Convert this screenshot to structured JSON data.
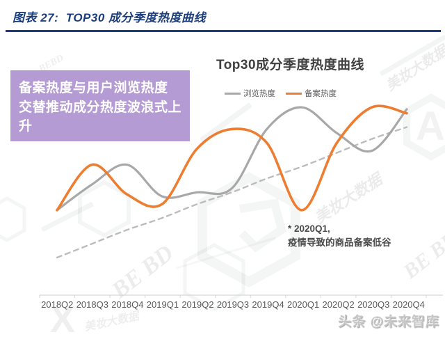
{
  "header": {
    "title": "图表 27:  TOP30 成分季度热度曲线"
  },
  "callout": {
    "line1": "备案热度与用户浏览热度",
    "line2": "交替推动成分热度波浪式上升"
  },
  "annotation": {
    "line1": "* 2020Q1,",
    "line2": "疫情导致的商品备案低谷"
  },
  "credit": "头条 @未来智库",
  "watermarks": {
    "brand": "BE BD",
    "brand_compact": "BEBD",
    "script": "美妆大数据",
    "letter_x": "X",
    "letter_a": "A"
  },
  "colors": {
    "header_blue": "#1c3e7c",
    "callout_bg": "#b49bd3",
    "callout_text": "#ffffff",
    "title_text": "#404040",
    "label_text": "#595959",
    "axis": "#d6d6d6",
    "view_gray": "#a8a8a8",
    "filing_orange": "#ed7d31",
    "trend_gray": "#bcbcbc"
  },
  "chart_data": {
    "type": "line",
    "title": "Top30成分季度热度曲线",
    "categories": [
      "2018Q2",
      "2018Q3",
      "2018Q4",
      "2019Q1",
      "2019Q2",
      "2019Q3",
      "2019Q4",
      "2020Q1",
      "2020Q2",
      "2020Q3",
      "2020Q4"
    ],
    "series": [
      {
        "name": "浏览热度",
        "color": "#a8a8a8",
        "style": "solid",
        "in_legend": true,
        "values": [
          43,
          56,
          66,
          50,
          52,
          54,
          84,
          95,
          82,
          73,
          94
        ]
      },
      {
        "name": "备案热度",
        "color": "#ed7d31",
        "style": "solid",
        "in_legend": true,
        "values": [
          43,
          66,
          51,
          46,
          74,
          84,
          77,
          43,
          77,
          95,
          92
        ]
      },
      {
        "name": "trend_dashed",
        "color": "#bcbcbc",
        "style": "dashed",
        "in_legend": false,
        "values": [
          19,
          26,
          33,
          39,
          46,
          52,
          59,
          65,
          72,
          79,
          85
        ]
      }
    ],
    "xlabel": "",
    "ylabel": "",
    "ylim": [
      0,
      100
    ],
    "grid": false,
    "legend_position": "top"
  }
}
